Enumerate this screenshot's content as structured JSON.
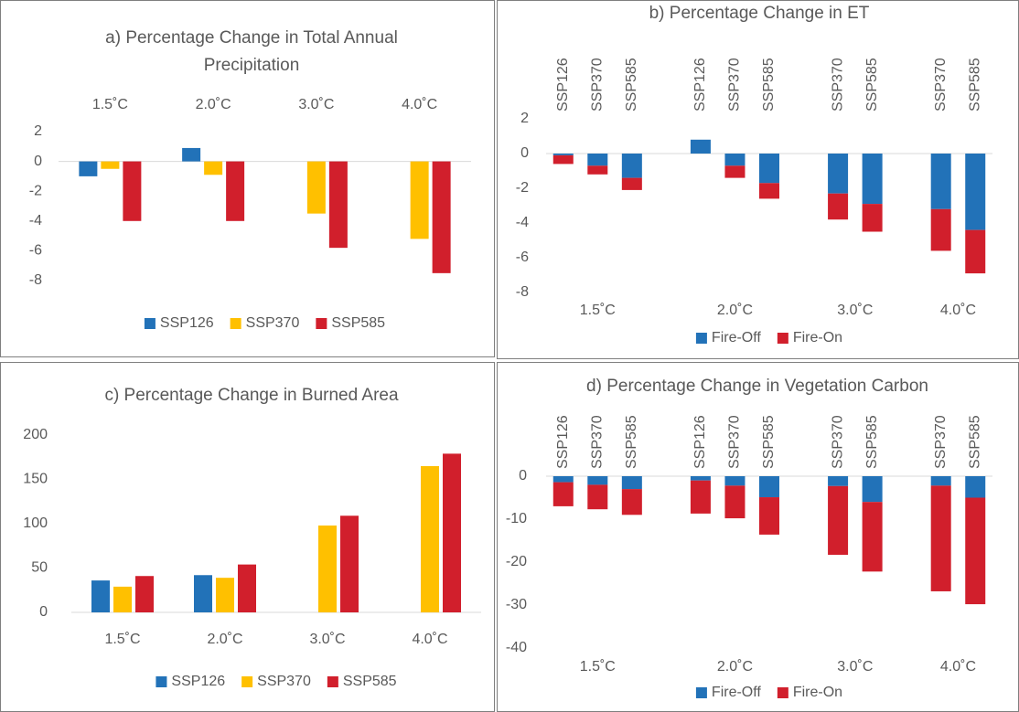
{
  "chart_data": [
    {
      "type": "bar",
      "title": "a) Percentage Change in Total Annual Precipitation",
      "categories": [
        "1.5˚C",
        "2.0˚C",
        "3.0˚C",
        "4.0˚C"
      ],
      "series": [
        {
          "name": "SSP126",
          "color": "#2272b8",
          "values": [
            -1.0,
            0.9,
            null,
            null
          ]
        },
        {
          "name": "SSP370",
          "color": "#ffc000",
          "values": [
            -0.5,
            -0.9,
            -3.5,
            -5.2
          ]
        },
        {
          "name": "SSP585",
          "color": "#d11f2c",
          "values": [
            -4.0,
            -4.0,
            -5.8,
            -7.5
          ]
        }
      ],
      "ylim": [
        -8,
        2
      ],
      "yticks": [
        2,
        0,
        -2,
        -4,
        -6,
        -8
      ],
      "legend": "bottom"
    },
    {
      "type": "stacked_bar",
      "title": "b) Percentage Change in ET",
      "categories": [
        "SSP126",
        "SSP370",
        "SSP585",
        null,
        "SSP126",
        "SSP370",
        "SSP585",
        null,
        "SSP370",
        "SSP585",
        null,
        "SSP370",
        "SSP585"
      ],
      "groups": [
        "1.5˚C",
        "2.0˚C",
        "3.0˚C",
        "4.0˚C"
      ],
      "series": [
        {
          "name": "Fire-Off",
          "color": "#2272b8",
          "values": [
            -0.1,
            -0.7,
            -1.4,
            null,
            0.8,
            -0.7,
            -1.7,
            null,
            -2.3,
            -2.9,
            null,
            -3.2,
            -4.4
          ]
        },
        {
          "name": "Fire-On",
          "color": "#d11f2c",
          "values": [
            -0.5,
            -0.5,
            -0.7,
            null,
            0,
            -0.7,
            -0.9,
            null,
            -1.5,
            -1.6,
            null,
            -2.4,
            -2.5
          ]
        }
      ],
      "ylim": [
        -8,
        2
      ],
      "yticks": [
        2,
        0,
        -2,
        -4,
        -6,
        -8
      ],
      "legend": "bottom"
    },
    {
      "type": "bar",
      "title": "c) Percentage Change in Burned Area",
      "categories": [
        "1.5˚C",
        "2.0˚C",
        "3.0˚C",
        "4.0˚C"
      ],
      "series": [
        {
          "name": "SSP126",
          "color": "#2272b8",
          "values": [
            36,
            42,
            null,
            null
          ]
        },
        {
          "name": "SSP370",
          "color": "#ffc000",
          "values": [
            29,
            39,
            98,
            165
          ]
        },
        {
          "name": "SSP585",
          "color": "#d11f2c",
          "values": [
            41,
            54,
            109,
            179
          ]
        }
      ],
      "ylim": [
        0,
        200
      ],
      "yticks": [
        0,
        50,
        100,
        150,
        200
      ],
      "legend": "bottom"
    },
    {
      "type": "stacked_bar",
      "title": "d) Percentage Change in Vegetation Carbon",
      "categories": [
        "SSP126",
        "SSP370",
        "SSP585",
        null,
        "SSP126",
        "SSP370",
        "SSP585",
        null,
        "SSP370",
        "SSP585",
        null,
        "SSP370",
        "SSP585"
      ],
      "groups": [
        "1.5˚C",
        "2.0˚C",
        "3.0˚C",
        "4.0˚C"
      ],
      "series": [
        {
          "name": "Fire-Off",
          "color": "#2272b8",
          "values": [
            -1.4,
            -2,
            -3,
            null,
            -1,
            -2.2,
            -4.9,
            null,
            -2.3,
            -6,
            null,
            -2.2,
            -5
          ]
        },
        {
          "name": "Fire-On",
          "color": "#d11f2c",
          "values": [
            -5.6,
            -5.7,
            -6,
            null,
            -7.7,
            -7.6,
            -8.7,
            null,
            -16,
            -16.2,
            null,
            -24.6,
            -24.8
          ]
        }
      ],
      "ylim": [
        -40,
        0
      ],
      "yticks": [
        0,
        -10,
        -20,
        -30,
        -40
      ],
      "legend": "bottom"
    }
  ]
}
